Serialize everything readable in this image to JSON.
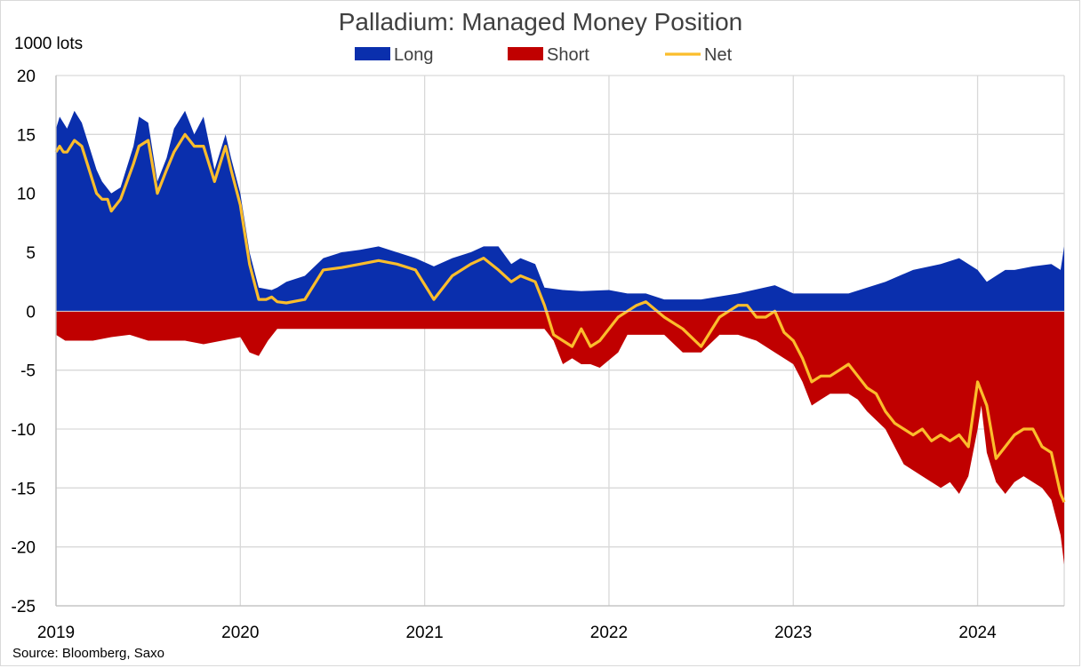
{
  "chart_data": {
    "type": "area",
    "title": "Palladium: Managed Money Position",
    "ylabel": "1000 lots",
    "source": "Source: Bloomberg, Saxo",
    "ylim": [
      -25,
      20
    ],
    "yticks": [
      20,
      15,
      10,
      5,
      0,
      -5,
      -10,
      -15,
      -20,
      -25
    ],
    "xlim": [
      2019.0,
      2024.47
    ],
    "xticks": [
      "2019",
      "2020",
      "2021",
      "2022",
      "2023",
      "2024"
    ],
    "grid": true,
    "legend_position": "top",
    "colors": {
      "Long": "#0a2fad",
      "Short": "#c00000",
      "Net": "#fbbd2c"
    },
    "series": [
      {
        "name": "Long",
        "kind": "area",
        "x": [
          2019.0,
          2019.02,
          2019.06,
          2019.1,
          2019.14,
          2019.22,
          2019.25,
          2019.3,
          2019.35,
          2019.42,
          2019.45,
          2019.5,
          2019.55,
          2019.6,
          2019.64,
          2019.7,
          2019.75,
          2019.8,
          2019.86,
          2019.92,
          2019.95,
          2020.0,
          2020.05,
          2020.1,
          2020.17,
          2020.2,
          2020.25,
          2020.35,
          2020.45,
          2020.55,
          2020.65,
          2020.75,
          2020.85,
          2020.95,
          2021.05,
          2021.15,
          2021.25,
          2021.32,
          2021.4,
          2021.47,
          2021.52,
          2021.6,
          2021.65,
          2021.75,
          2021.85,
          2022.0,
          2022.1,
          2022.2,
          2022.3,
          2022.5,
          2022.7,
          2022.9,
          2023.0,
          2023.1,
          2023.3,
          2023.5,
          2023.65,
          2023.8,
          2023.9,
          2024.0,
          2024.05,
          2024.1,
          2024.15,
          2024.2,
          2024.3,
          2024.4,
          2024.45,
          2024.47
        ],
        "values": [
          15.5,
          16.5,
          15.5,
          17.0,
          16.0,
          12.0,
          11.0,
          10.0,
          10.5,
          14.0,
          16.5,
          16.0,
          11.0,
          13.0,
          15.5,
          17.0,
          15.0,
          16.5,
          12.0,
          15.0,
          13.0,
          10.0,
          5.0,
          2.0,
          1.8,
          2.0,
          2.5,
          3.0,
          4.5,
          5.0,
          5.2,
          5.5,
          5.0,
          4.5,
          3.8,
          4.5,
          5.0,
          5.5,
          5.5,
          4.0,
          4.5,
          4.0,
          2.0,
          1.8,
          1.7,
          1.8,
          1.5,
          1.5,
          1.0,
          1.0,
          1.5,
          2.2,
          1.5,
          1.5,
          1.5,
          2.5,
          3.5,
          4.0,
          4.5,
          3.5,
          2.5,
          3.0,
          3.5,
          3.5,
          3.8,
          4.0,
          3.5,
          5.5
        ]
      },
      {
        "name": "Short",
        "kind": "area",
        "x": [
          2019.0,
          2019.05,
          2019.1,
          2019.2,
          2019.3,
          2019.4,
          2019.5,
          2019.6,
          2019.7,
          2019.8,
          2019.9,
          2020.0,
          2020.05,
          2020.1,
          2020.15,
          2020.2,
          2020.3,
          2020.5,
          2020.7,
          2020.9,
          2021.1,
          2021.3,
          2021.5,
          2021.65,
          2021.7,
          2021.75,
          2021.8,
          2021.85,
          2021.9,
          2021.95,
          2022.05,
          2022.1,
          2022.2,
          2022.3,
          2022.4,
          2022.5,
          2022.6,
          2022.7,
          2022.8,
          2022.9,
          2023.0,
          2023.05,
          2023.1,
          2023.15,
          2023.2,
          2023.3,
          2023.35,
          2023.4,
          2023.5,
          2023.6,
          2023.7,
          2023.8,
          2023.85,
          2023.9,
          2023.95,
          2024.0,
          2024.02,
          2024.05,
          2024.1,
          2024.15,
          2024.2,
          2024.25,
          2024.3,
          2024.35,
          2024.4,
          2024.45,
          2024.47
        ],
        "values": [
          -2.0,
          -2.5,
          -2.5,
          -2.5,
          -2.2,
          -2.0,
          -2.5,
          -2.5,
          -2.5,
          -2.8,
          -2.5,
          -2.2,
          -3.5,
          -3.8,
          -2.5,
          -1.5,
          -1.5,
          -1.5,
          -1.5,
          -1.5,
          -1.5,
          -1.5,
          -1.5,
          -1.5,
          -2.5,
          -4.5,
          -4.0,
          -4.5,
          -4.5,
          -4.8,
          -3.5,
          -2.0,
          -2.0,
          -2.0,
          -3.5,
          -3.5,
          -2.0,
          -2.0,
          -2.5,
          -3.5,
          -4.5,
          -6.0,
          -8.0,
          -7.5,
          -7.0,
          -7.0,
          -7.5,
          -8.5,
          -10.0,
          -13.0,
          -14.0,
          -15.0,
          -14.5,
          -15.5,
          -14.0,
          -10.0,
          -8.0,
          -12.0,
          -14.5,
          -15.5,
          -14.5,
          -14.0,
          -14.5,
          -15.0,
          -16.0,
          -19.0,
          -21.5
        ]
      },
      {
        "name": "Net",
        "kind": "line",
        "x": [
          2019.0,
          2019.02,
          2019.04,
          2019.06,
          2019.1,
          2019.14,
          2019.18,
          2019.22,
          2019.25,
          2019.28,
          2019.3,
          2019.35,
          2019.42,
          2019.45,
          2019.5,
          2019.55,
          2019.6,
          2019.64,
          2019.7,
          2019.75,
          2019.8,
          2019.86,
          2019.92,
          2019.95,
          2020.0,
          2020.05,
          2020.1,
          2020.14,
          2020.17,
          2020.2,
          2020.25,
          2020.35,
          2020.45,
          2020.55,
          2020.65,
          2020.75,
          2020.85,
          2020.95,
          2021.05,
          2021.15,
          2021.25,
          2021.32,
          2021.4,
          2021.47,
          2021.52,
          2021.6,
          2021.65,
          2021.7,
          2021.75,
          2021.8,
          2021.85,
          2021.9,
          2021.95,
          2022.05,
          2022.1,
          2022.15,
          2022.2,
          2022.3,
          2022.4,
          2022.5,
          2022.6,
          2022.65,
          2022.7,
          2022.75,
          2022.8,
          2022.85,
          2022.9,
          2022.95,
          2023.0,
          2023.05,
          2023.1,
          2023.15,
          2023.2,
          2023.25,
          2023.3,
          2023.35,
          2023.4,
          2023.45,
          2023.5,
          2023.55,
          2023.6,
          2023.65,
          2023.7,
          2023.75,
          2023.8,
          2023.85,
          2023.9,
          2023.95,
          2024.0,
          2024.05,
          2024.1,
          2024.15,
          2024.2,
          2024.25,
          2024.3,
          2024.35,
          2024.4,
          2024.45,
          2024.47
        ],
        "values": [
          13.5,
          14.0,
          13.5,
          13.5,
          14.5,
          14.0,
          12.0,
          10.0,
          9.5,
          9.5,
          8.5,
          9.5,
          12.5,
          14.0,
          14.5,
          10.0,
          12.0,
          13.5,
          15.0,
          14.0,
          14.0,
          11.0,
          14.0,
          12.0,
          9.0,
          4.0,
          1.0,
          1.0,
          1.2,
          0.8,
          0.7,
          1.0,
          3.5,
          3.7,
          4.0,
          4.3,
          4.0,
          3.5,
          1.0,
          3.0,
          4.0,
          4.5,
          3.5,
          2.5,
          3.0,
          2.5,
          0.5,
          -2.0,
          -2.5,
          -3.0,
          -1.5,
          -3.0,
          -2.5,
          -0.5,
          0.0,
          0.5,
          0.8,
          -0.5,
          -1.5,
          -3.0,
          -0.5,
          0.0,
          0.5,
          0.5,
          -0.5,
          -0.5,
          0.0,
          -1.8,
          -2.5,
          -4.0,
          -6.0,
          -5.5,
          -5.5,
          -5.0,
          -4.5,
          -5.5,
          -6.5,
          -7.0,
          -8.5,
          -9.5,
          -10.0,
          -10.5,
          -10.0,
          -11.0,
          -10.5,
          -11.0,
          -10.5,
          -11.5,
          -6.0,
          -8.0,
          -12.5,
          -11.5,
          -10.5,
          -10.0,
          -10.0,
          -11.5,
          -12.0,
          -15.5,
          -16.2
        ]
      }
    ]
  }
}
